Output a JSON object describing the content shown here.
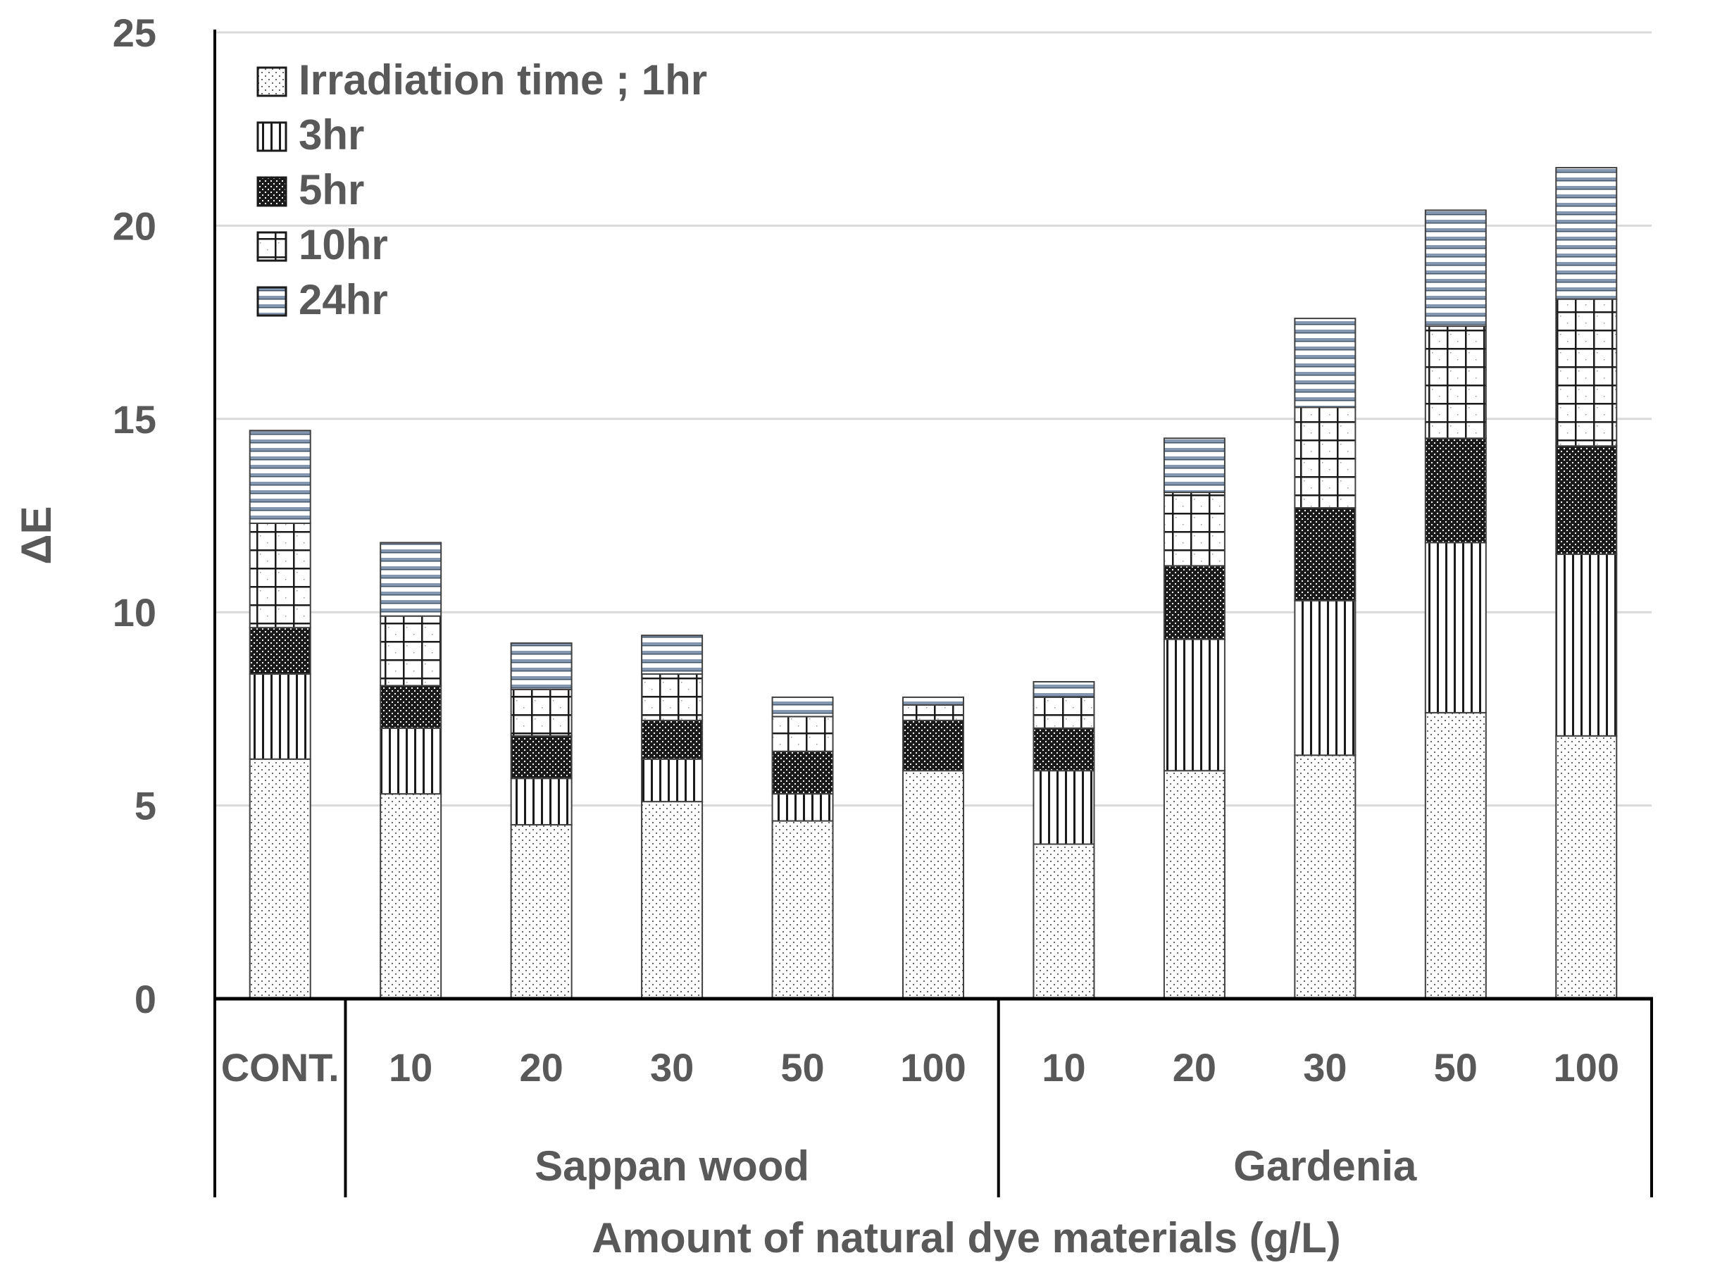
{
  "chart_data": {
    "type": "bar",
    "stacked": true,
    "categories": [
      "CONT.",
      "10",
      "20",
      "30",
      "50",
      "100",
      "10",
      "20",
      "30",
      "50",
      "100"
    ],
    "groups": [
      {
        "label": "",
        "categories": [
          "CONT."
        ]
      },
      {
        "label": "Sappan wood",
        "categories": [
          "10",
          "20",
          "30",
          "50",
          "100"
        ]
      },
      {
        "label": "Gardenia",
        "categories": [
          "10",
          "20",
          "30",
          "50",
          "100"
        ]
      }
    ],
    "series": [
      {
        "name": "Irradiation time ; 1hr",
        "pattern": "dots",
        "values": [
          6.2,
          5.3,
          4.5,
          5.1,
          4.6,
          5.9,
          4.0,
          5.9,
          6.3,
          7.4,
          6.8
        ]
      },
      {
        "name": "3hr",
        "pattern": "vertical",
        "values": [
          2.2,
          1.7,
          1.2,
          1.1,
          0.7,
          0.0,
          1.9,
          3.4,
          4.0,
          4.4,
          4.7
        ]
      },
      {
        "name": "5hr",
        "pattern": "checker",
        "values": [
          1.2,
          1.1,
          1.1,
          1.0,
          1.1,
          1.3,
          1.1,
          1.9,
          2.4,
          2.7,
          2.8
        ]
      },
      {
        "name": "10hr",
        "pattern": "grid",
        "values": [
          2.7,
          1.8,
          1.2,
          1.2,
          0.9,
          0.4,
          0.8,
          1.9,
          2.6,
          2.9,
          3.8
        ]
      },
      {
        "name": "24hr",
        "pattern": "horizontal",
        "values": [
          2.4,
          1.9,
          1.2,
          1.0,
          0.5,
          0.2,
          0.4,
          1.4,
          2.3,
          3.0,
          3.4
        ]
      }
    ],
    "title": "",
    "xlabel": "Amount of natural dye materials (g/L)",
    "ylabel": "ΔE",
    "ylim": [
      0,
      25
    ],
    "yticks": [
      0,
      5,
      10,
      15,
      20,
      25
    ],
    "grid": true,
    "legend_position": "top-left"
  },
  "colors": {
    "axis": "#000000",
    "grid": "#d9d9d9",
    "text": "#595959",
    "bar_outline": "#404040",
    "stripe_blue": "#8497b0"
  }
}
